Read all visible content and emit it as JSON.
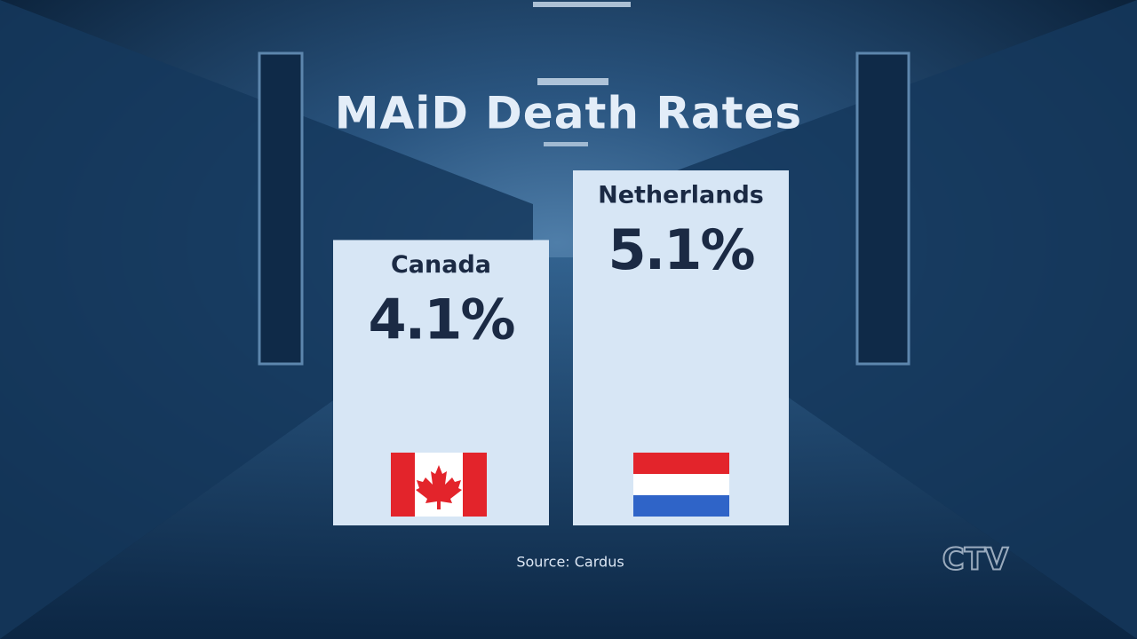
{
  "chart_data": {
    "type": "bar",
    "title": "MAiD Death Rates",
    "categories": [
      "Canada",
      "Netherlands"
    ],
    "values": [
      4.1,
      5.1
    ],
    "value_labels": [
      "4.1%",
      "5.1%"
    ],
    "color": "#d7e6f5",
    "source": "Source: Cardus",
    "logo": "CTV"
  }
}
